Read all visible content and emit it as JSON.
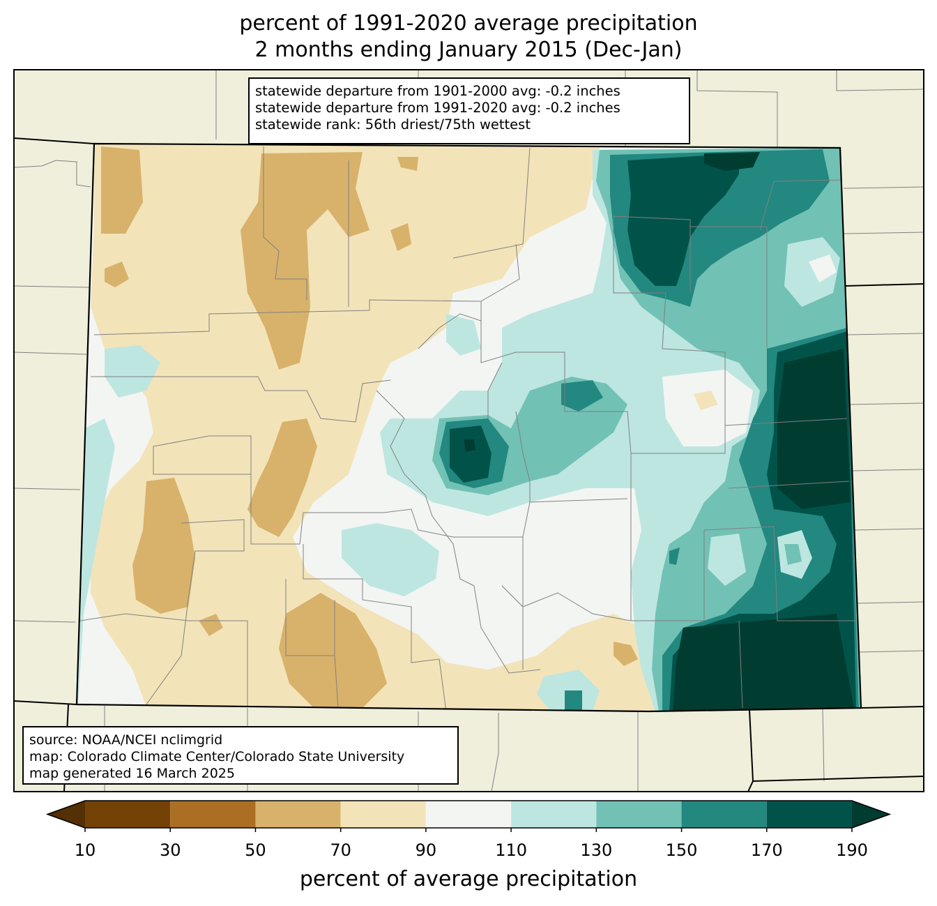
{
  "title": {
    "line1": "percent of 1991-2020 average precipitation",
    "line2": "2 months ending January 2015 (Dec-Jan)"
  },
  "stats": {
    "line1": "statewide departure from 1901-2000 avg: -0.2 inches",
    "line2": "statewide departure from 1991-2020 avg: -0.2 inches",
    "line3": "statewide rank: 56th driest/75th wettest"
  },
  "source": {
    "line1": "source: NOAA/NCEI nclimgrid",
    "line2": "map: Colorado Climate Center/Colorado State University",
    "line3": "map generated 16 March 2025"
  },
  "colorbar": {
    "label": "percent of average precipitation",
    "ticks": [
      "10",
      "30",
      "50",
      "70",
      "90",
      "110",
      "130",
      "150",
      "170",
      "190"
    ],
    "under_color": "#543005",
    "over_color": "#003c30",
    "bins": [
      {
        "from": 10,
        "to": 30,
        "color": "#744106"
      },
      {
        "from": 30,
        "to": 50,
        "color": "#ab6e23"
      },
      {
        "from": 50,
        "to": 70,
        "color": "#d8b26b"
      },
      {
        "from": 70,
        "to": 90,
        "color": "#f3e3b9"
      },
      {
        "from": 90,
        "to": 110,
        "color": "#f3f5f3"
      },
      {
        "from": 110,
        "to": 130,
        "color": "#bde6e1"
      },
      {
        "from": 130,
        "to": 150,
        "color": "#72c1b5"
      },
      {
        "from": 150,
        "to": 170,
        "color": "#228880"
      },
      {
        "from": 170,
        "to": 190,
        "color": "#01534a"
      }
    ]
  },
  "colors": {
    "land": "#efefdc",
    "county_line": "#808080",
    "border": "#000000"
  }
}
